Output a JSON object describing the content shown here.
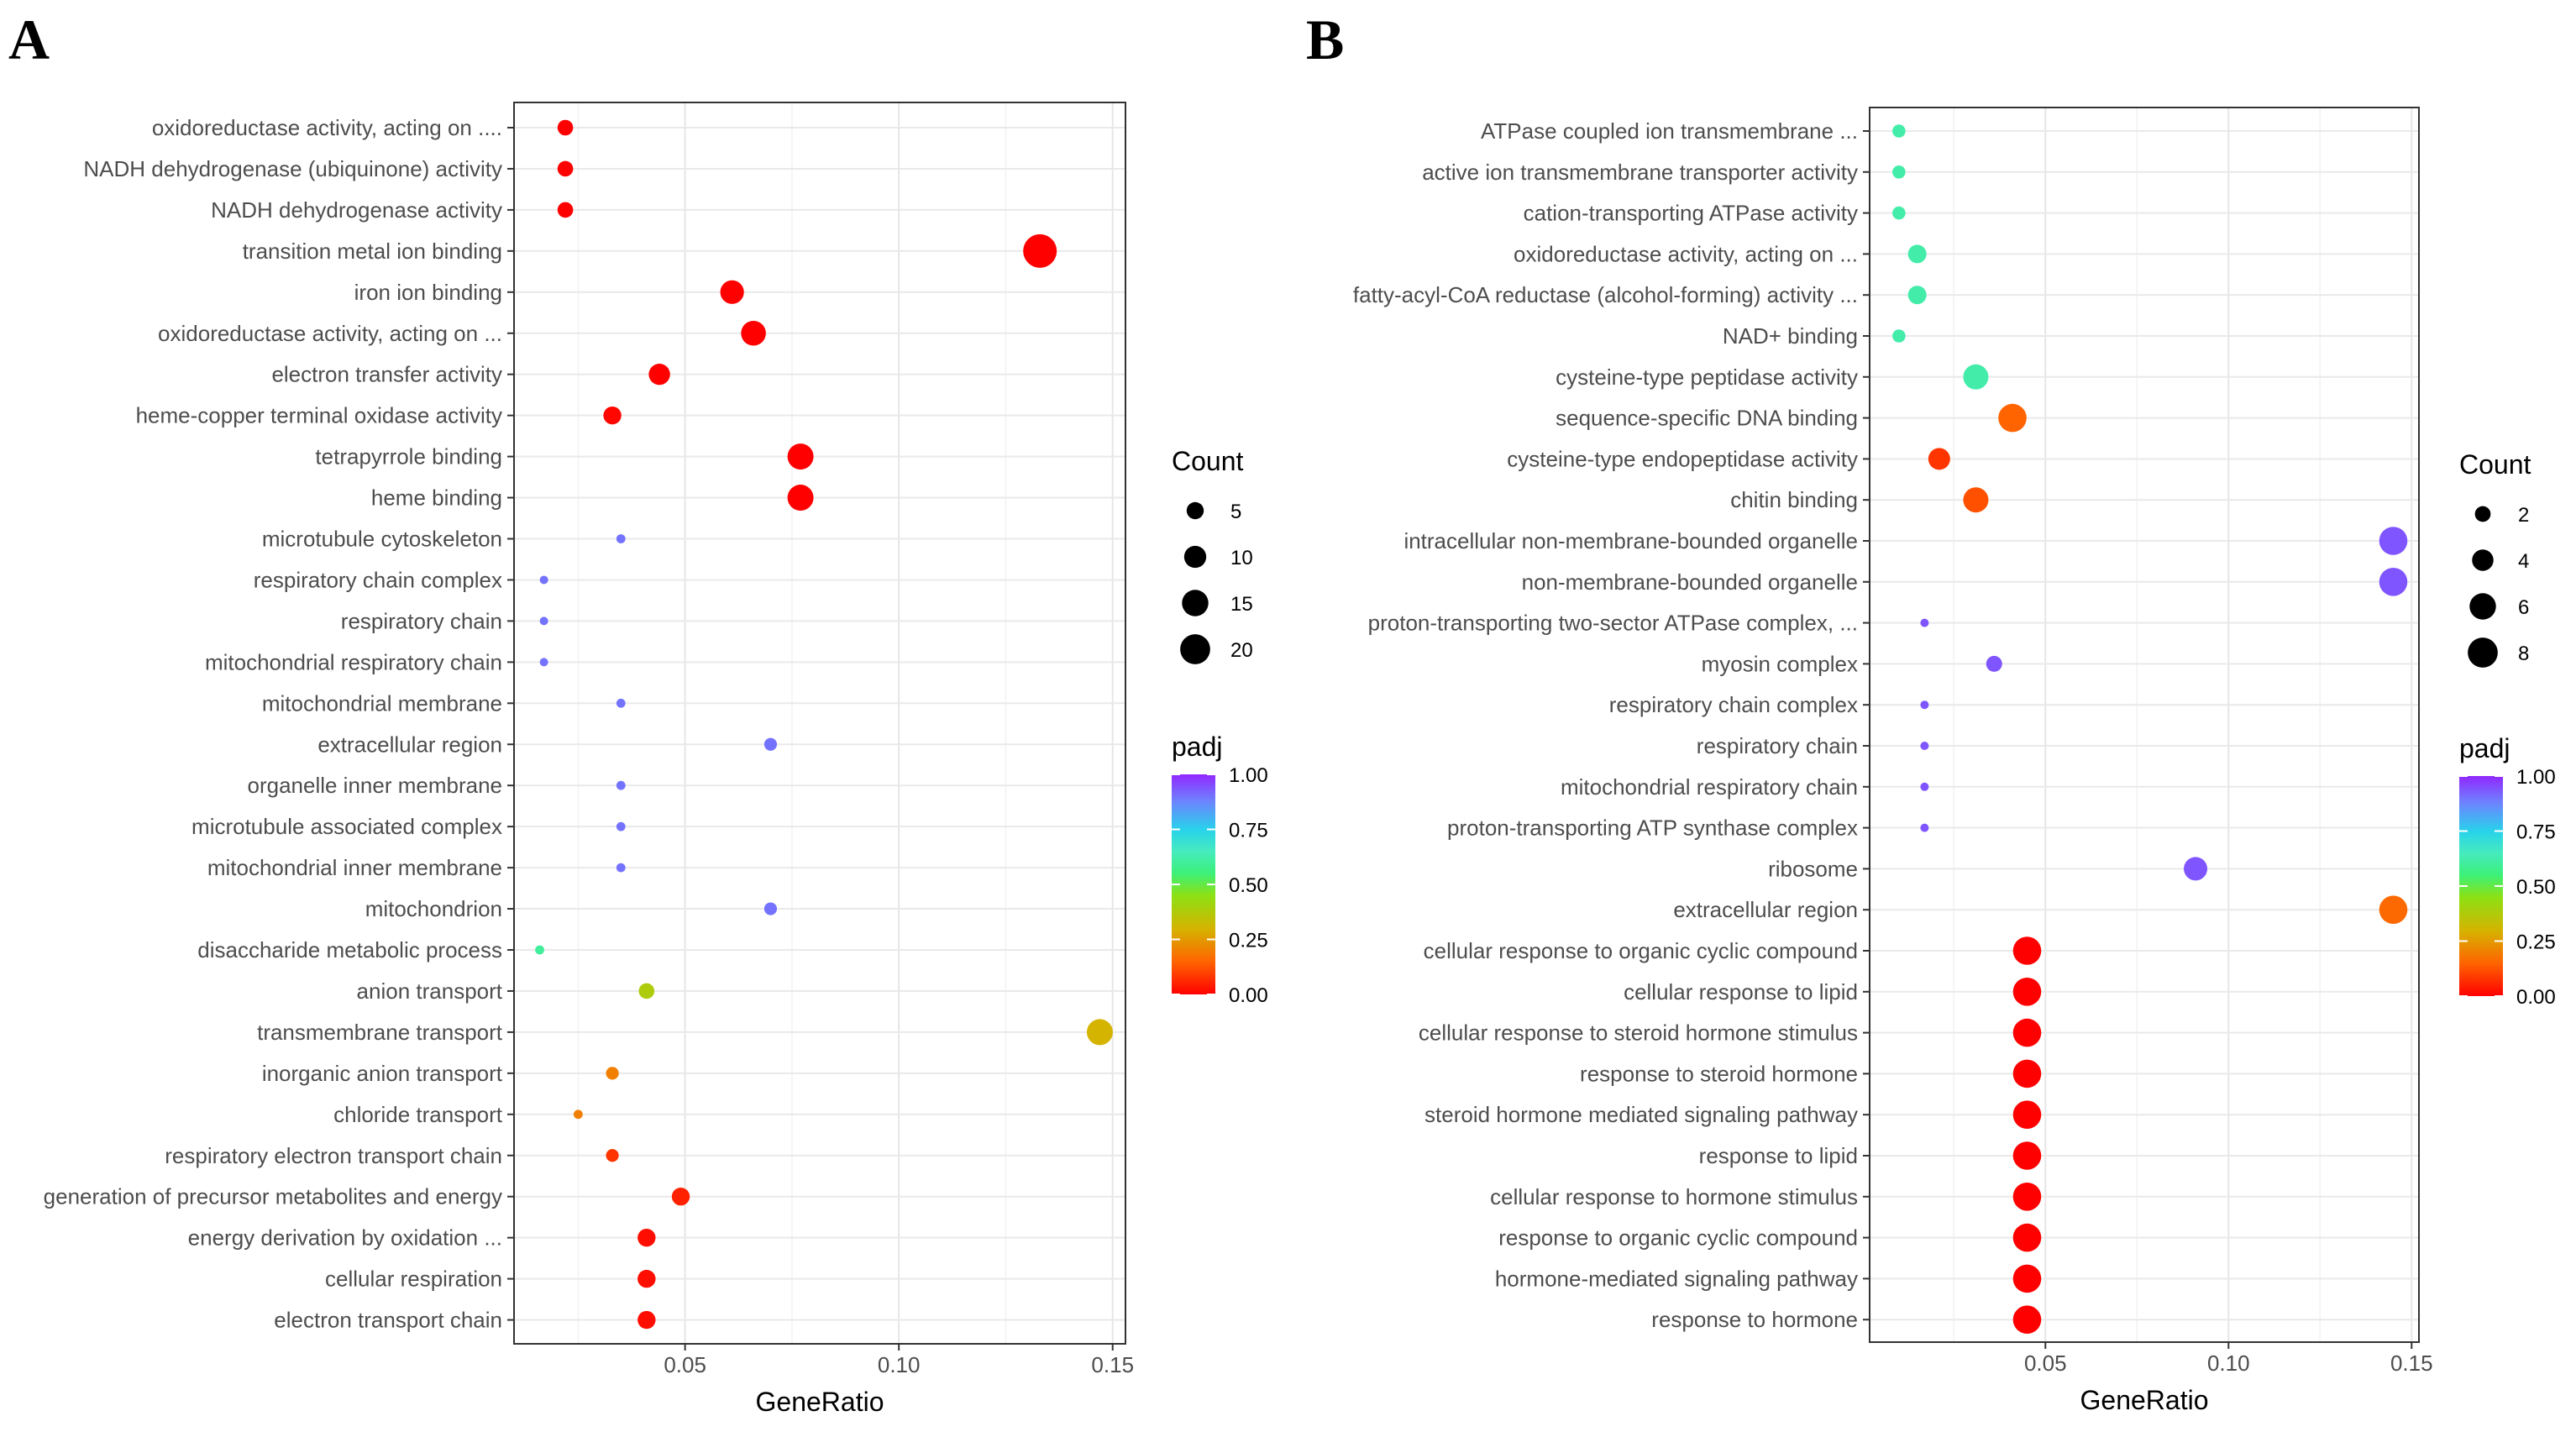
{
  "chart_data": [
    {
      "panel": "A",
      "type": "scatter",
      "xlabel": "GeneRatio",
      "xticks": [
        0.05,
        0.1,
        0.15
      ],
      "xtick_labels": [
        "0.05",
        "0.10",
        "0.15"
      ],
      "xlim": [
        0.01,
        0.153
      ],
      "size_legend": {
        "title": "Count",
        "values": [
          5,
          10,
          15,
          20
        ],
        "labels": [
          "5",
          "10",
          "15",
          "20"
        ]
      },
      "color_legend": {
        "title": "padj",
        "labels": [
          "1.00",
          "0.75",
          "0.50",
          "0.25",
          "0.00"
        ]
      },
      "categories": [
        "oxidoreductase activity, acting on ....",
        "NADH dehydrogenase (ubiquinone) activity",
        "NADH dehydrogenase activity",
        "transition metal ion binding",
        "iron ion binding",
        "oxidoreductase activity, acting on ...",
        "electron transfer activity",
        "heme-copper terminal oxidase activity",
        "tetrapyrrole binding",
        "heme binding",
        "microtubule cytoskeleton",
        "respiratory chain complex",
        "respiratory chain",
        "mitochondrial respiratory chain",
        "mitochondrial membrane",
        "extracellular region",
        "organelle inner membrane",
        "microtubule associated complex",
        "mitochondrial inner membrane",
        "mitochondrion",
        "disaccharide metabolic process",
        "anion transport",
        "transmembrane transport",
        "inorganic anion transport",
        "chloride transport",
        "respiratory electron transport chain",
        "generation of precursor metabolites and energy",
        "energy derivation by oxidation ...",
        "cellular respiration",
        "electron transport chain"
      ],
      "points": [
        {
          "x": 0.022,
          "count": 3,
          "padj": 0.0
        },
        {
          "x": 0.022,
          "count": 3,
          "padj": 0.0
        },
        {
          "x": 0.022,
          "count": 3,
          "padj": 0.0
        },
        {
          "x": 0.133,
          "count": 18,
          "padj": 0.0
        },
        {
          "x": 0.061,
          "count": 8,
          "padj": 0.0
        },
        {
          "x": 0.066,
          "count": 9,
          "padj": 0.0
        },
        {
          "x": 0.044,
          "count": 6,
          "padj": 0.0
        },
        {
          "x": 0.033,
          "count": 4,
          "padj": 0.01
        },
        {
          "x": 0.077,
          "count": 10,
          "padj": 0.0
        },
        {
          "x": 0.077,
          "count": 10,
          "padj": 0.0
        },
        {
          "x": 0.035,
          "count": 1,
          "padj": 0.9
        },
        {
          "x": 0.017,
          "count": 0.3,
          "padj": 0.9
        },
        {
          "x": 0.017,
          "count": 0.3,
          "padj": 0.9
        },
        {
          "x": 0.017,
          "count": 0.3,
          "padj": 0.9
        },
        {
          "x": 0.035,
          "count": 1,
          "padj": 0.9
        },
        {
          "x": 0.07,
          "count": 2,
          "padj": 0.9
        },
        {
          "x": 0.035,
          "count": 1,
          "padj": 0.9
        },
        {
          "x": 0.035,
          "count": 1,
          "padj": 0.9
        },
        {
          "x": 0.035,
          "count": 1,
          "padj": 0.9
        },
        {
          "x": 0.07,
          "count": 2,
          "padj": 0.9
        },
        {
          "x": 0.016,
          "count": 1,
          "padj": 0.6
        },
        {
          "x": 0.041,
          "count": 3,
          "padj": 0.38
        },
        {
          "x": 0.147,
          "count": 10,
          "padj": 0.3
        },
        {
          "x": 0.033,
          "count": 2,
          "padj": 0.2
        },
        {
          "x": 0.025,
          "count": 1,
          "padj": 0.2
        },
        {
          "x": 0.033,
          "count": 2,
          "padj": 0.08
        },
        {
          "x": 0.049,
          "count": 4,
          "padj": 0.05
        },
        {
          "x": 0.041,
          "count": 4,
          "padj": 0.02
        },
        {
          "x": 0.041,
          "count": 4,
          "padj": 0.02
        },
        {
          "x": 0.041,
          "count": 4,
          "padj": 0.02
        }
      ]
    },
    {
      "panel": "B",
      "type": "scatter",
      "xlabel": "GeneRatio",
      "xticks": [
        0.05,
        0.1,
        0.15
      ],
      "xtick_labels": [
        "0.05",
        "0.10",
        "0.15"
      ],
      "xlim": [
        0.002,
        0.152
      ],
      "size_legend": {
        "title": "Count",
        "values": [
          2,
          4,
          6,
          8
        ],
        "labels": [
          "2",
          "4",
          "6",
          "8"
        ]
      },
      "color_legend": {
        "title": "padj",
        "labels": [
          "1.00",
          "0.75",
          "0.50",
          "0.25",
          "0.00"
        ]
      },
      "categories": [
        "ATPase coupled ion transmembrane ...",
        "active ion transmembrane transporter activity",
        "cation-transporting ATPase activity",
        "oxidoreductase activity, acting on ...",
        "fatty-acyl-CoA reductase (alcohol-forming) activity ...",
        "NAD+ binding",
        "cysteine-type peptidase activity",
        "sequence-specific DNA binding",
        "cysteine-type endopeptidase activity",
        "chitin binding",
        "intracellular non-membrane-bounded organelle",
        "non-membrane-bounded organelle",
        "proton-transporting two-sector ATPase complex, ...",
        "myosin complex",
        "respiratory chain complex",
        "respiratory chain",
        "mitochondrial respiratory chain",
        "proton-transporting ATP synthase complex",
        "ribosome",
        "extracellular region",
        "cellular response to organic cyclic compound",
        "cellular response to lipid",
        "cellular response to steroid hormone stimulus",
        "response to steroid hormone",
        "steroid hormone mediated signaling pathway",
        "response to lipid",
        "cellular response to hormone stimulus",
        "response to organic cyclic compound",
        "hormone-mediated signaling pathway",
        "response to hormone"
      ],
      "points": [
        {
          "x": 0.01,
          "count": 1,
          "padj": 0.62
        },
        {
          "x": 0.01,
          "count": 1,
          "padj": 0.62
        },
        {
          "x": 0.01,
          "count": 1,
          "padj": 0.62
        },
        {
          "x": 0.015,
          "count": 2,
          "padj": 0.62
        },
        {
          "x": 0.015,
          "count": 2,
          "padj": 0.62
        },
        {
          "x": 0.01,
          "count": 1,
          "padj": 0.62
        },
        {
          "x": 0.031,
          "count": 4,
          "padj": 0.62
        },
        {
          "x": 0.041,
          "count": 5,
          "padj": 0.15
        },
        {
          "x": 0.021,
          "count": 3,
          "padj": 0.08
        },
        {
          "x": 0.031,
          "count": 4,
          "padj": 0.12
        },
        {
          "x": 0.145,
          "count": 5,
          "padj": 0.94
        },
        {
          "x": 0.145,
          "count": 5,
          "padj": 0.94
        },
        {
          "x": 0.017,
          "count": 0.4,
          "padj": 0.94
        },
        {
          "x": 0.036,
          "count": 1.5,
          "padj": 0.94
        },
        {
          "x": 0.017,
          "count": 0.4,
          "padj": 0.94
        },
        {
          "x": 0.017,
          "count": 0.4,
          "padj": 0.94
        },
        {
          "x": 0.017,
          "count": 0.4,
          "padj": 0.94
        },
        {
          "x": 0.017,
          "count": 0.4,
          "padj": 0.94
        },
        {
          "x": 0.091,
          "count": 3.5,
          "padj": 0.94
        },
        {
          "x": 0.145,
          "count": 5,
          "padj": 0.16
        },
        {
          "x": 0.045,
          "count": 5,
          "padj": 0.0
        },
        {
          "x": 0.045,
          "count": 5,
          "padj": 0.0
        },
        {
          "x": 0.045,
          "count": 5,
          "padj": 0.0
        },
        {
          "x": 0.045,
          "count": 5,
          "padj": 0.0
        },
        {
          "x": 0.045,
          "count": 5,
          "padj": 0.0
        },
        {
          "x": 0.045,
          "count": 5,
          "padj": 0.0
        },
        {
          "x": 0.045,
          "count": 5,
          "padj": 0.0
        },
        {
          "x": 0.045,
          "count": 5,
          "padj": 0.0
        },
        {
          "x": 0.045,
          "count": 5,
          "padj": 0.0
        },
        {
          "x": 0.045,
          "count": 5,
          "padj": 0.0
        }
      ]
    }
  ]
}
